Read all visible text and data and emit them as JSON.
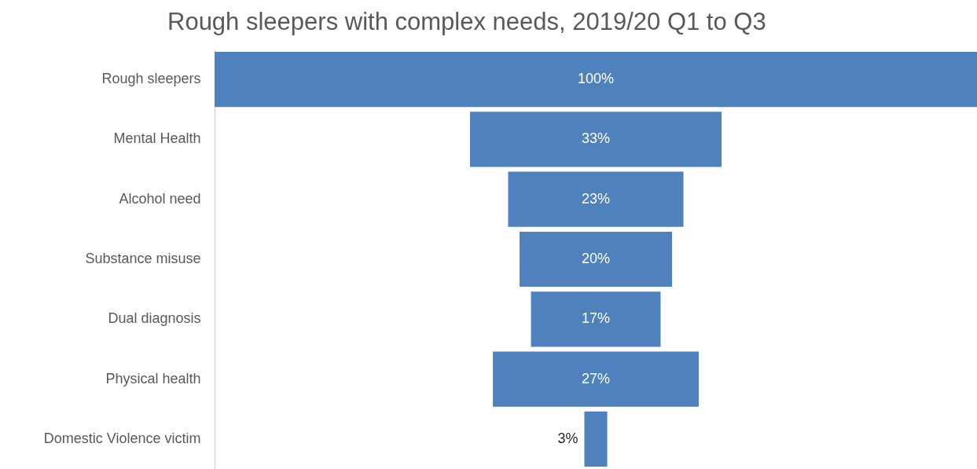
{
  "chart_data": {
    "type": "other",
    "title": "Rough sleepers with complex needs, 2019/20 Q1 to Q3",
    "categories": [
      "Rough sleepers",
      "Mental Health",
      "Alcohol need",
      "Substance misuse",
      "Dual diagnosis",
      "Physical health",
      "Domestic Violence victim"
    ],
    "values": [
      100,
      33,
      23,
      20,
      17,
      27,
      3
    ],
    "value_labels": [
      "100%",
      "33%",
      "23%",
      "20%",
      "17%",
      "27%",
      "3%"
    ],
    "color": "#4f81bd"
  }
}
